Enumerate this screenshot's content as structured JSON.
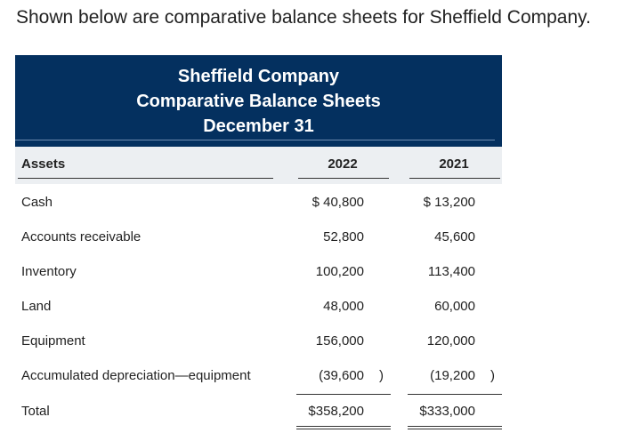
{
  "intro": "Shown below are comparative balance sheets for Sheffield Company.",
  "header": {
    "company": "Sheffield Company",
    "title": "Comparative Balance Sheets",
    "date": "December 31"
  },
  "columns": {
    "label": "Assets",
    "year1": "2022",
    "year2": "2021"
  },
  "rows": [
    {
      "label": "Cash",
      "y2022": "$ 40,800",
      "y2021": "$ 13,200"
    },
    {
      "label": "Accounts receivable",
      "y2022": "52,800",
      "y2021": "45,600"
    },
    {
      "label": "Inventory",
      "y2022": "100,200",
      "y2021": "113,400"
    },
    {
      "label": "Land",
      "y2022": "48,000",
      "y2021": "60,000"
    },
    {
      "label": "Equipment",
      "y2022": "156,000",
      "y2021": "120,000"
    },
    {
      "label": "Accumulated depreciation—equipment",
      "y2022": "(39,600",
      "y2021": "(19,200",
      "close": ")"
    },
    {
      "label": "Total",
      "y2022": "$358,200",
      "y2021": "$333,000"
    }
  ]
}
